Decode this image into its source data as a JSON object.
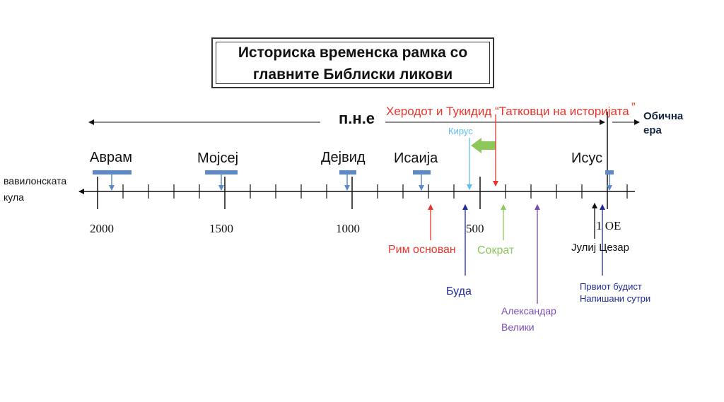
{
  "title": {
    "line1": "Историска временска рамка со",
    "line2": "главните Библиски ликови"
  },
  "eras": {
    "bce": "п.н.е",
    "ce_line1": "Обична",
    "ce_line2": "ера"
  },
  "tower": {
    "line1": "вавилонската",
    "line2": "кула"
  },
  "figures": {
    "abraham": "Аврам",
    "moses": "Мојсеј",
    "david": "Дејвид",
    "isaiah": "Исаија",
    "jesus": "Исус",
    "cyrus": "Кирус"
  },
  "years": {
    "y2000": "2000",
    "y1500": "1500",
    "y1000": "1000",
    "y500": "500",
    "y1": "1 ОЕ"
  },
  "events": {
    "herodotus": "Херодот и Тукидид “Татковци на историјата",
    "herodotus_quote": "”",
    "rome": "Рим основан",
    "buddha": "Буда",
    "socrates": "Сократ",
    "alexander_line1": "Александар",
    "alexander_line2": "Велики",
    "caesar": "Јулиј Цезар",
    "sutras_line1": "Првиот будист",
    "sutras_line2": "Напишани сутри"
  },
  "colors": {
    "bar": "#5b8ac6",
    "red": "#e8342a",
    "lightblue": "#5ec0ee",
    "navy": "#1f2a9c",
    "green": "#8cc85a",
    "purple": "#7a4bb0",
    "darknavy": "#13263f"
  }
}
